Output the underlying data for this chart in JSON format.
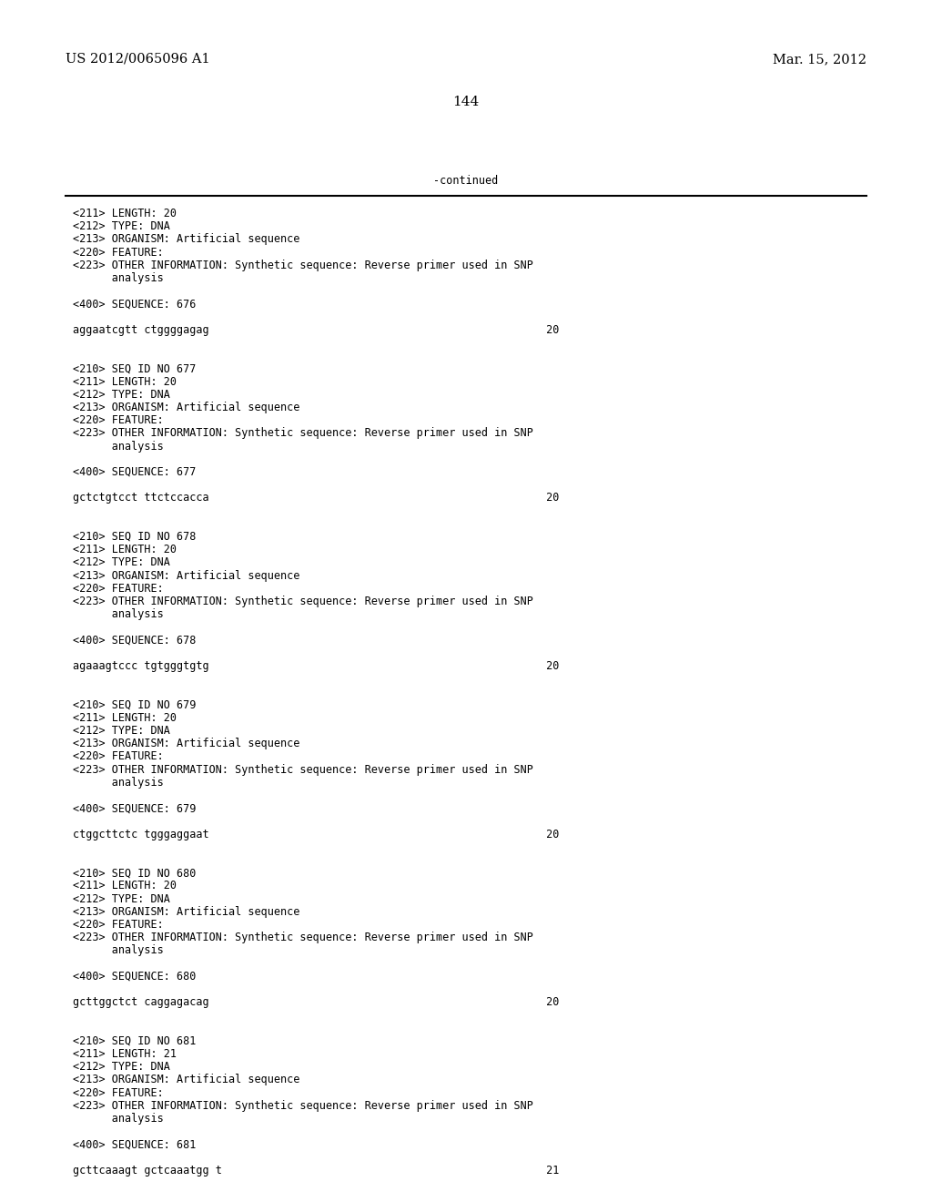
{
  "header_left": "US 2012/0065096 A1",
  "header_right": "Mar. 15, 2012",
  "page_number": "144",
  "continued_text": "-continued",
  "background_color": "#ffffff",
  "text_color": "#000000",
  "font_size_header": 10.5,
  "font_size_body": 8.5,
  "font_size_page": 11,
  "lines": [
    "<211> LENGTH: 20",
    "<212> TYPE: DNA",
    "<213> ORGANISM: Artificial sequence",
    "<220> FEATURE:",
    "<223> OTHER INFORMATION: Synthetic sequence: Reverse primer used in SNP",
    "      analysis",
    "",
    "<400> SEQUENCE: 676",
    "",
    "aggaatcgtt ctggggagag                                                    20",
    "",
    "",
    "<210> SEQ ID NO 677",
    "<211> LENGTH: 20",
    "<212> TYPE: DNA",
    "<213> ORGANISM: Artificial sequence",
    "<220> FEATURE:",
    "<223> OTHER INFORMATION: Synthetic sequence: Reverse primer used in SNP",
    "      analysis",
    "",
    "<400> SEQUENCE: 677",
    "",
    "gctctgtcct ttctccacca                                                    20",
    "",
    "",
    "<210> SEQ ID NO 678",
    "<211> LENGTH: 20",
    "<212> TYPE: DNA",
    "<213> ORGANISM: Artificial sequence",
    "<220> FEATURE:",
    "<223> OTHER INFORMATION: Synthetic sequence: Reverse primer used in SNP",
    "      analysis",
    "",
    "<400> SEQUENCE: 678",
    "",
    "agaaagtccc tgtgggtgtg                                                    20",
    "",
    "",
    "<210> SEQ ID NO 679",
    "<211> LENGTH: 20",
    "<212> TYPE: DNA",
    "<213> ORGANISM: Artificial sequence",
    "<220> FEATURE:",
    "<223> OTHER INFORMATION: Synthetic sequence: Reverse primer used in SNP",
    "      analysis",
    "",
    "<400> SEQUENCE: 679",
    "",
    "ctggcttctc tgggaggaat                                                    20",
    "",
    "",
    "<210> SEQ ID NO 680",
    "<211> LENGTH: 20",
    "<212> TYPE: DNA",
    "<213> ORGANISM: Artificial sequence",
    "<220> FEATURE:",
    "<223> OTHER INFORMATION: Synthetic sequence: Reverse primer used in SNP",
    "      analysis",
    "",
    "<400> SEQUENCE: 680",
    "",
    "gcttggctct caggagacag                                                    20",
    "",
    "",
    "<210> SEQ ID NO 681",
    "<211> LENGTH: 21",
    "<212> TYPE: DNA",
    "<213> ORGANISM: Artificial sequence",
    "<220> FEATURE:",
    "<223> OTHER INFORMATION: Synthetic sequence: Reverse primer used in SNP",
    "      analysis",
    "",
    "<400> SEQUENCE: 681",
    "",
    "gcttcaaagt gctcaaatgg t                                                  21"
  ]
}
